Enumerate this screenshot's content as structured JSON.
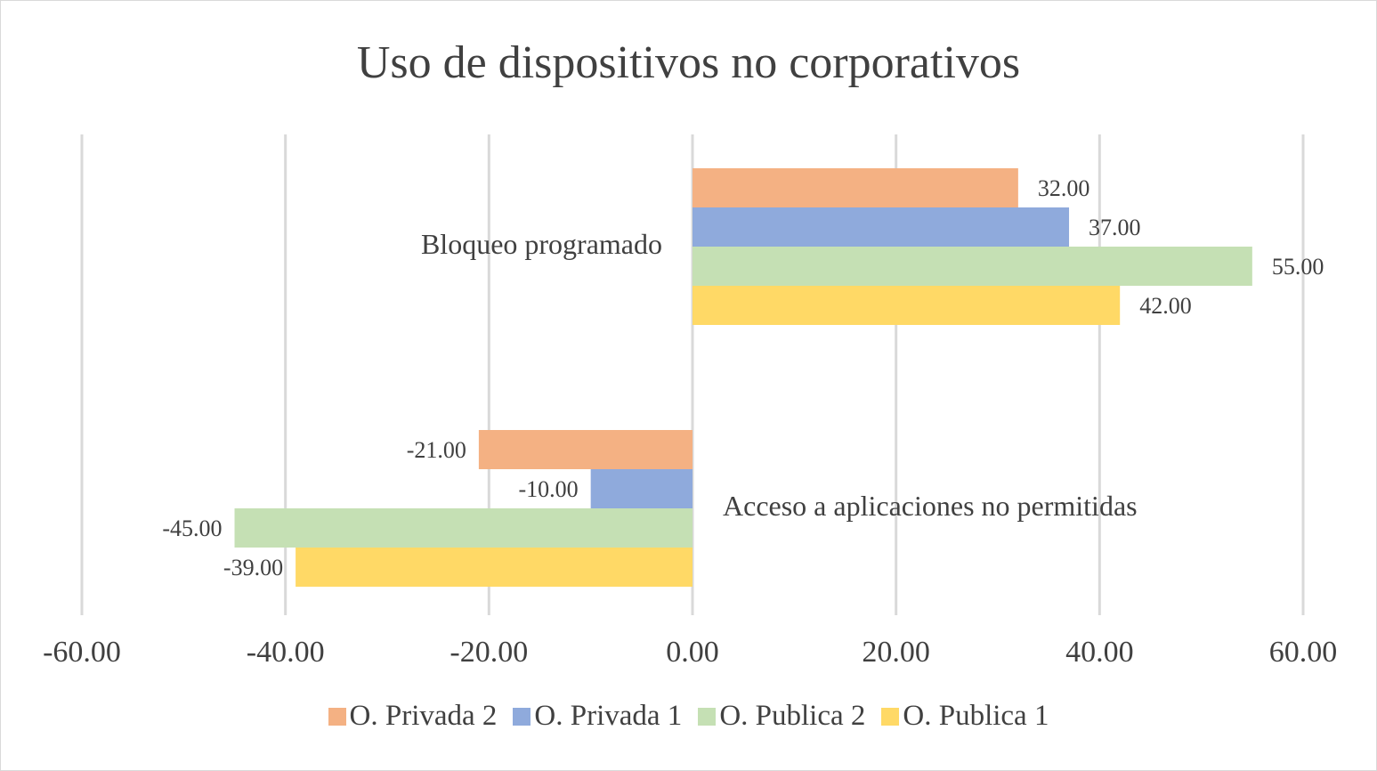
{
  "chart_data": {
    "type": "bar",
    "orientation": "horizontal",
    "title": "Uso de dispositivos no corporativos",
    "categories": [
      "Bloqueo programado",
      "Acceso a aplicaciones no permitidas"
    ],
    "series": [
      {
        "name": "O. Privada 2",
        "color": "#F4B183",
        "values": [
          32,
          -21
        ],
        "labels": [
          "32.00",
          "-21.00"
        ]
      },
      {
        "name": "O. Privada 1",
        "color": "#8FAADC",
        "values": [
          37,
          -10
        ],
        "labels": [
          "37.00",
          "-10.00"
        ]
      },
      {
        "name": "O. Publica 2",
        "color": "#C5E0B4",
        "values": [
          55,
          -45
        ],
        "labels": [
          "55.00",
          "-45.00"
        ]
      },
      {
        "name": "O. Publica 1",
        "color": "#FFD966",
        "values": [
          42,
          -39
        ],
        "labels": [
          "42.00",
          "-39.00"
        ]
      }
    ],
    "xlim": [
      -60,
      60
    ],
    "xticks": [
      -60,
      -40,
      -20,
      0,
      20,
      40,
      60
    ],
    "xtick_labels": [
      "-60.00",
      "-40.00",
      "-20.00",
      "0.00",
      "20.00",
      "40.00",
      "60.00"
    ],
    "grid": true,
    "legend_position": "bottom",
    "xlabel": "",
    "ylabel": ""
  }
}
